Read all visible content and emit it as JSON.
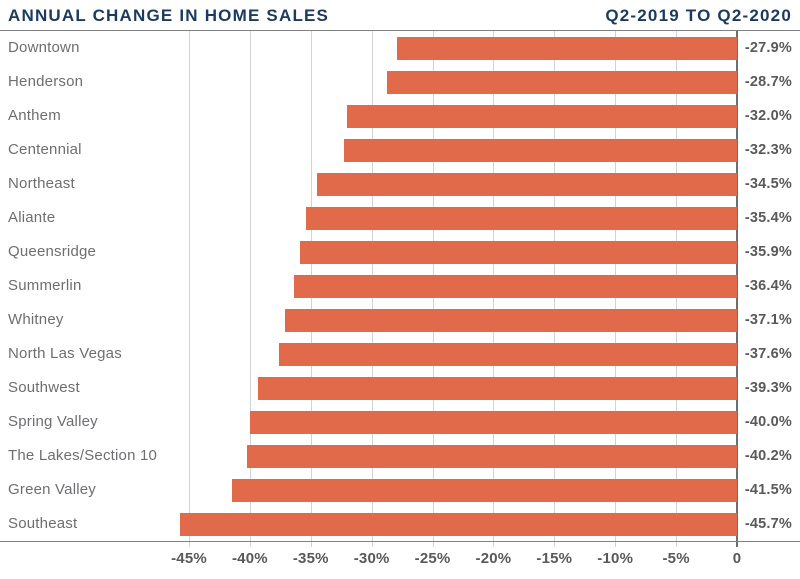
{
  "header": {
    "title": "ANNUAL CHANGE IN HOME SALES",
    "period": "Q2-2019 TO Q2-2020"
  },
  "colors": {
    "bar": "#E16A4A",
    "title_navy": "#1B3A5F",
    "category_label_gray": "#6D6E71",
    "value_label_gray": "#58595B",
    "gridline": "#D1D3D4",
    "axis_line": "#808184",
    "zero_line": "#6D6E71",
    "background": "#FFFFFF"
  },
  "chart_data": {
    "type": "bar",
    "orientation": "horizontal",
    "title": "ANNUAL CHANGE IN HOME SALES",
    "subtitle": "Q2-2019 TO Q2-2020",
    "categories": [
      "Downtown",
      "Henderson",
      "Anthem",
      "Centennial",
      "Northeast",
      "Aliante",
      "Queensridge",
      "Summerlin",
      "Whitney",
      "North Las Vegas",
      "Southwest",
      "Spring Valley",
      "The Lakes/Section 10",
      "Green Valley",
      "Southeast"
    ],
    "values": [
      -27.9,
      -28.7,
      -32.0,
      -32.3,
      -34.5,
      -35.4,
      -35.9,
      -36.4,
      -37.1,
      -37.6,
      -39.3,
      -40.0,
      -40.2,
      -41.5,
      -45.7
    ],
    "value_labels": [
      "-27.9%",
      "-28.7%",
      "-32.0%",
      "-32.3%",
      "-34.5%",
      "-35.4%",
      "-35.9%",
      "-36.4%",
      "-37.1%",
      "-37.6%",
      "-39.3%",
      "-40.0%",
      "-40.2%",
      "-41.5%",
      "-45.7%"
    ],
    "x_ticks": [
      {
        "value": -45,
        "label": "-45%"
      },
      {
        "value": -40,
        "label": "-40%"
      },
      {
        "value": -35,
        "label": "-35%"
      },
      {
        "value": -30,
        "label": "-30%"
      },
      {
        "value": -25,
        "label": "-25%"
      },
      {
        "value": -20,
        "label": "-20%"
      },
      {
        "value": -15,
        "label": "-15%"
      },
      {
        "value": -10,
        "label": "-10%"
      },
      {
        "value": -5,
        "label": "-5%"
      },
      {
        "value": 0,
        "label": "0"
      }
    ],
    "xlim": [
      -48,
      0
    ],
    "xlabel": "",
    "ylabel": "",
    "grid": true,
    "legend": false
  }
}
